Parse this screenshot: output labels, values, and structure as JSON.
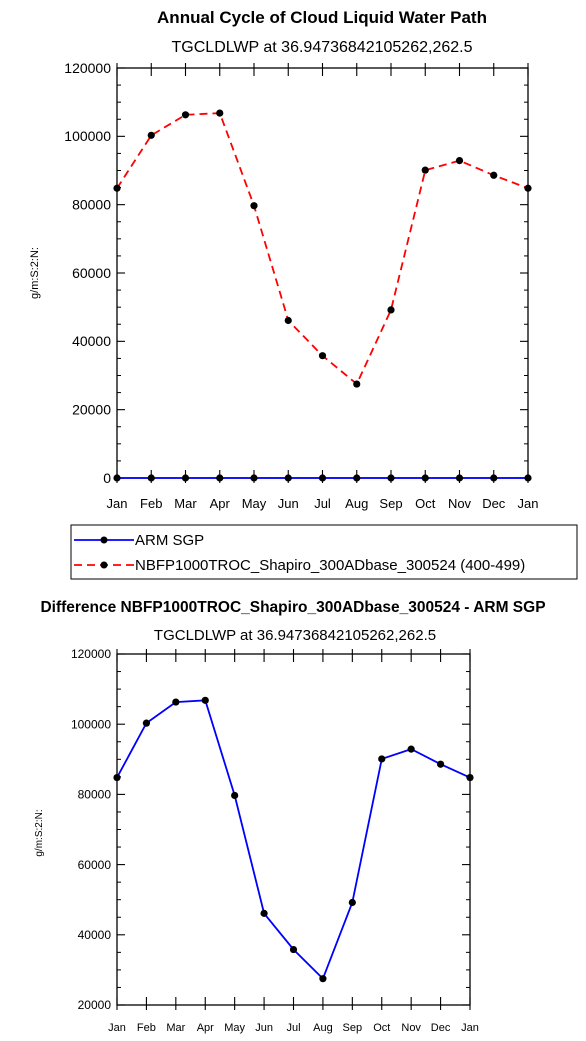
{
  "chart_data": [
    {
      "type": "line",
      "title": "Annual Cycle of Cloud Liquid Water Path",
      "subtitle": "TGCLDLWP at 36.94736842105262,262.5",
      "xlabel": "",
      "ylabel": "g/m:S:2:N:",
      "categories": [
        "Jan",
        "Feb",
        "Mar",
        "Apr",
        "May",
        "Jun",
        "Jul",
        "Aug",
        "Sep",
        "Oct",
        "Nov",
        "Dec",
        "Jan"
      ],
      "ylim": [
        0,
        120000
      ],
      "yticks": [
        "0",
        "20000",
        "40000",
        "60000",
        "80000",
        "100000",
        "120000"
      ],
      "series": [
        {
          "name": "ARM SGP",
          "color": "#0000ff",
          "dash": "solid",
          "values": [
            0,
            0,
            0,
            0,
            0,
            0,
            0,
            0,
            0,
            0,
            0,
            0,
            0
          ]
        },
        {
          "name": "NBFP1000TROC_Shapiro_300ADbase_300524 (400-499)",
          "color": "#ff0000",
          "dash": "dashed",
          "values": [
            84800,
            100300,
            106300,
            106800,
            79700,
            46100,
            35800,
            27500,
            49200,
            90100,
            92900,
            88600,
            84800
          ]
        }
      ],
      "legend": "below"
    },
    {
      "type": "line",
      "title": "Difference NBFP1000TROC_Shapiro_300ADbase_300524 - ARM SGP",
      "subtitle": "TGCLDLWP at 36.94736842105262,262.5",
      "xlabel": "",
      "ylabel": "g/m:S:2:N:",
      "categories": [
        "Jan",
        "Feb",
        "Mar",
        "Apr",
        "May",
        "Jun",
        "Jul",
        "Aug",
        "Sep",
        "Oct",
        "Nov",
        "Dec",
        "Jan"
      ],
      "ylim": [
        20000,
        120000
      ],
      "yticks": [
        "20000",
        "40000",
        "60000",
        "80000",
        "100000",
        "120000"
      ],
      "series": [
        {
          "color": "#0000ff",
          "dash": "solid",
          "values": [
            84800,
            100300,
            106300,
            106800,
            79700,
            46100,
            35800,
            27500,
            49200,
            90100,
            92900,
            88600,
            84800
          ]
        }
      ]
    }
  ]
}
